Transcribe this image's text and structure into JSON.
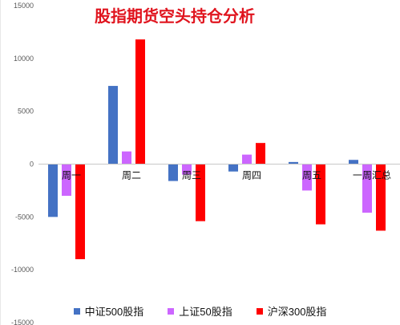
{
  "chart_data": {
    "type": "bar",
    "title": "股指期货空头持仓分析",
    "categories": [
      "周一",
      "周二",
      "周三",
      "周四",
      "周五",
      "一周汇总"
    ],
    "series": [
      {
        "name": "中证500股指",
        "color": "#4472c4",
        "values": [
          -5000,
          7400,
          -1600,
          -700,
          200,
          400
        ]
      },
      {
        "name": "上证50股指",
        "color": "#cc66ff",
        "values": [
          -3000,
          1200,
          -1000,
          900,
          -2500,
          -4600
        ]
      },
      {
        "name": "沪深300股指",
        "color": "#ff0000",
        "values": [
          -9000,
          11800,
          -5400,
          2000,
          -5700,
          -6300
        ]
      }
    ],
    "yticks": [
      "15000",
      "10000",
      "5000",
      "0",
      "-5000",
      "-10000",
      "-15000"
    ],
    "ylim": [
      -15000,
      15000
    ],
    "grid": false,
    "legend_position": "bottom"
  }
}
